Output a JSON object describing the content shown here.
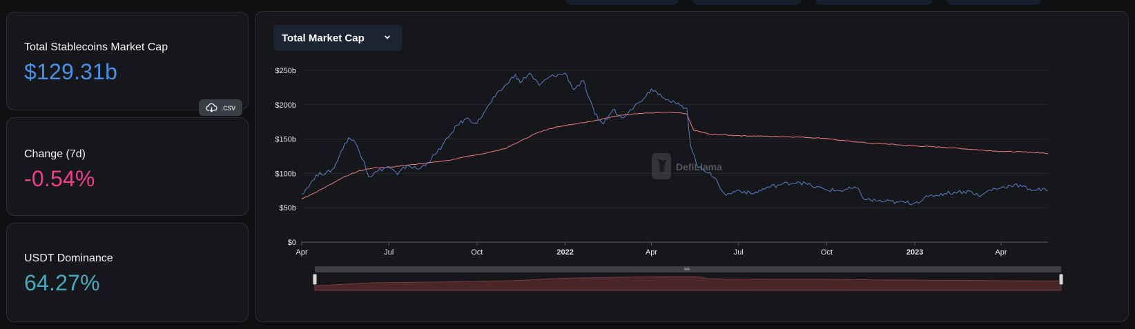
{
  "stats": {
    "market_cap_label": "Total Stablecoins Market Cap",
    "market_cap_value": "$129.31b",
    "csv_label": ".csv",
    "change_label": "Change (7d)",
    "change_value": "-0.54%",
    "dominance_label": "USDT Dominance",
    "dominance_value": "64.27%"
  },
  "chart_header": {
    "selected_metric": "Total Market Cap"
  },
  "watermark": "DefiLlama",
  "colors": {
    "market_cap_value": "#4a90e8",
    "change_value": "#f03e8c",
    "dominance_value": "#47a9bd",
    "series_total": "#f07c7c",
    "series_dominant": "#5b7ec9"
  },
  "chart_data": {
    "type": "line",
    "xlabel": "",
    "ylabel": "",
    "x_ticks": [
      "Apr",
      "Jul",
      "Oct",
      "2022",
      "Apr",
      "Jul",
      "Oct",
      "2023",
      "Apr"
    ],
    "x_ticks_bold": [
      false,
      false,
      false,
      true,
      false,
      false,
      false,
      true,
      false
    ],
    "y_ticks": [
      "$0",
      "$50b",
      "$100b",
      "$150b",
      "$200b",
      "$250b"
    ],
    "ylim": [
      0,
      250
    ],
    "x_range": [
      "2021-04-01",
      "2023-05-20"
    ],
    "grid": true,
    "series": [
      {
        "color": "#f07c7c",
        "points": [
          [
            "2021-04-01",
            63
          ],
          [
            "2021-04-15",
            72
          ],
          [
            "2021-05-01",
            84
          ],
          [
            "2021-05-15",
            95
          ],
          [
            "2021-06-01",
            104
          ],
          [
            "2021-06-15",
            108
          ],
          [
            "2021-07-01",
            109
          ],
          [
            "2021-07-15",
            111
          ],
          [
            "2021-08-01",
            114
          ],
          [
            "2021-08-15",
            116
          ],
          [
            "2021-09-01",
            119
          ],
          [
            "2021-09-15",
            123
          ],
          [
            "2021-10-01",
            127
          ],
          [
            "2021-10-15",
            131
          ],
          [
            "2021-11-01",
            137
          ],
          [
            "2021-11-15",
            147
          ],
          [
            "2021-12-01",
            158
          ],
          [
            "2021-12-15",
            165
          ],
          [
            "2022-01-01",
            170
          ],
          [
            "2022-01-15",
            173
          ],
          [
            "2022-02-01",
            177
          ],
          [
            "2022-02-15",
            181
          ],
          [
            "2022-03-01",
            185
          ],
          [
            "2022-03-15",
            187
          ],
          [
            "2022-04-01",
            188
          ],
          [
            "2022-04-15",
            189
          ],
          [
            "2022-05-01",
            188
          ],
          [
            "2022-05-08",
            186
          ],
          [
            "2022-05-15",
            163
          ],
          [
            "2022-06-01",
            157
          ],
          [
            "2022-06-15",
            156
          ],
          [
            "2022-07-01",
            155
          ],
          [
            "2022-08-01",
            154
          ],
          [
            "2022-09-01",
            153
          ],
          [
            "2022-10-01",
            151
          ],
          [
            "2022-10-15",
            148
          ],
          [
            "2022-11-01",
            146
          ],
          [
            "2022-11-15",
            144
          ],
          [
            "2022-12-01",
            143
          ],
          [
            "2023-01-01",
            140
          ],
          [
            "2023-02-01",
            138
          ],
          [
            "2023-03-01",
            135
          ],
          [
            "2023-04-01",
            132
          ],
          [
            "2023-05-01",
            131
          ],
          [
            "2023-05-20",
            129
          ]
        ]
      },
      {
        "color": "#5b7ec9",
        "points": [
          [
            "2021-04-01",
            70
          ],
          [
            "2021-04-10",
            85
          ],
          [
            "2021-04-20",
            102
          ],
          [
            "2021-04-25",
            98
          ],
          [
            "2021-05-05",
            108
          ],
          [
            "2021-05-12",
            132
          ],
          [
            "2021-05-20",
            152
          ],
          [
            "2021-05-27",
            145
          ],
          [
            "2021-06-05",
            118
          ],
          [
            "2021-06-10",
            95
          ],
          [
            "2021-06-20",
            104
          ],
          [
            "2021-07-01",
            110
          ],
          [
            "2021-07-10",
            98
          ],
          [
            "2021-07-20",
            112
          ],
          [
            "2021-08-01",
            106
          ],
          [
            "2021-08-10",
            115
          ],
          [
            "2021-08-20",
            130
          ],
          [
            "2021-09-01",
            152
          ],
          [
            "2021-09-10",
            170
          ],
          [
            "2021-09-20",
            180
          ],
          [
            "2021-10-01",
            173
          ],
          [
            "2021-10-10",
            192
          ],
          [
            "2021-10-20",
            212
          ],
          [
            "2021-11-01",
            230
          ],
          [
            "2021-11-10",
            244
          ],
          [
            "2021-11-15",
            232
          ],
          [
            "2021-11-25",
            246
          ],
          [
            "2021-12-05",
            228
          ],
          [
            "2021-12-15",
            240
          ],
          [
            "2022-01-01",
            246
          ],
          [
            "2022-01-10",
            222
          ],
          [
            "2022-01-20",
            235
          ],
          [
            "2022-01-25",
            212
          ],
          [
            "2022-02-01",
            186
          ],
          [
            "2022-02-10",
            172
          ],
          [
            "2022-02-20",
            193
          ],
          [
            "2022-03-01",
            181
          ],
          [
            "2022-03-10",
            193
          ],
          [
            "2022-03-20",
            204
          ],
          [
            "2022-04-01",
            223
          ],
          [
            "2022-04-10",
            216
          ],
          [
            "2022-04-20",
            205
          ],
          [
            "2022-05-01",
            199
          ],
          [
            "2022-05-08",
            195
          ],
          [
            "2022-05-12",
            140
          ],
          [
            "2022-05-20",
            108
          ],
          [
            "2022-06-01",
            102
          ],
          [
            "2022-06-10",
            84
          ],
          [
            "2022-06-18",
            68
          ],
          [
            "2022-07-01",
            76
          ],
          [
            "2022-07-15",
            70
          ],
          [
            "2022-08-01",
            80
          ],
          [
            "2022-08-15",
            84
          ],
          [
            "2022-09-01",
            88
          ],
          [
            "2022-09-15",
            82
          ],
          [
            "2022-10-01",
            76
          ],
          [
            "2022-10-15",
            75
          ],
          [
            "2022-11-01",
            79
          ],
          [
            "2022-11-10",
            62
          ],
          [
            "2022-12-01",
            59
          ],
          [
            "2022-12-15",
            58
          ],
          [
            "2023-01-01",
            57
          ],
          [
            "2023-01-15",
            66
          ],
          [
            "2023-02-01",
            71
          ],
          [
            "2023-02-15",
            73
          ],
          [
            "2023-03-01",
            74
          ],
          [
            "2023-03-10",
            66
          ],
          [
            "2023-03-20",
            76
          ],
          [
            "2023-04-01",
            79
          ],
          [
            "2023-04-15",
            84
          ],
          [
            "2023-05-01",
            77
          ],
          [
            "2023-05-20",
            75
          ]
        ]
      }
    ]
  }
}
